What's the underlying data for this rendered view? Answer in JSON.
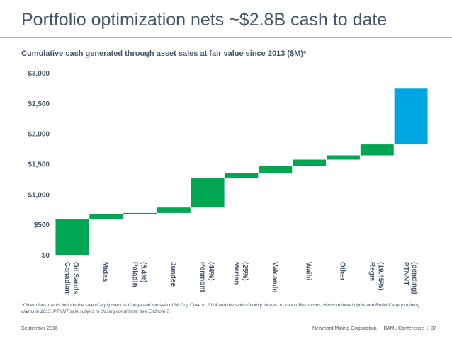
{
  "slide": {
    "title": "Portfolio optimization nets ~$2.8B cash to date",
    "subtitle": "Cumulative cash generated through asset sales at fair value since 2013 ($M)*",
    "footnote": "*Other divestments include the sale of equipment at Conga and the sale of McCoy Cove in 2014 and the sale of equity interest in Levon Resources, Hemlo mineral rights and Relief Canyon mining claims in 2015.  PTNNT sale subject to closing conditions; see Endnote 7.",
    "footer_date": "September 2016",
    "footer_company": "Newmont Mining Corporation",
    "footer_event": "BAML Conference",
    "footer_page": "37"
  },
  "colors": {
    "accent": "#c9b27c",
    "text": "#44546a",
    "completed": "#00a651",
    "pending": "#00a6e2"
  },
  "chart_data": {
    "type": "bar",
    "subtype": "waterfall",
    "ylim": [
      0,
      3000
    ],
    "yticks": [
      0,
      500,
      1000,
      1500,
      2000,
      2500,
      3000
    ],
    "ytick_labels": [
      "$0",
      "$500",
      "$1,000",
      "$1,500",
      "$2,000",
      "$2,500",
      "$3,000"
    ],
    "grid": false,
    "categories": [
      [
        "Canadian",
        "Oil Sands"
      ],
      [
        "Midas"
      ],
      [
        "Paladin",
        "(5.4%)"
      ],
      [
        "Jundee"
      ],
      [
        "Penmont",
        "(44%)"
      ],
      [
        "Merian",
        "(25%)"
      ],
      [
        "Valcambi"
      ],
      [
        "Waihi"
      ],
      [
        "Other"
      ],
      [
        "Regis",
        "(19.45%)"
      ],
      [
        "PTNNT",
        "(pending)"
      ]
    ],
    "values": [
      590,
      80,
      20,
      90,
      480,
      90,
      110,
      110,
      70,
      180,
      920
    ],
    "cumulative": [
      590,
      670,
      690,
      780,
      1260,
      1350,
      1460,
      1570,
      1640,
      1820,
      2740
    ],
    "status": [
      "completed",
      "completed",
      "completed",
      "completed",
      "completed",
      "completed",
      "completed",
      "completed",
      "completed",
      "completed",
      "pending"
    ]
  }
}
